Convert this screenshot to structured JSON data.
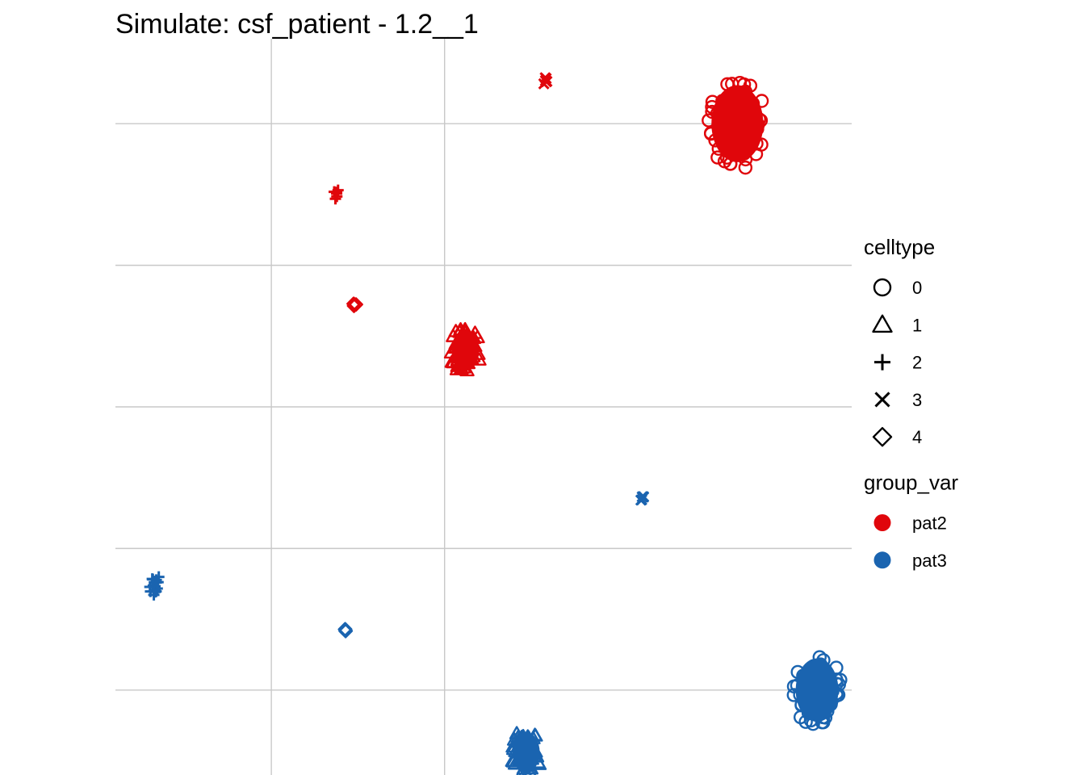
{
  "chart_data": {
    "type": "scatter",
    "title": "Simulate: csf_patient - 1.2__1",
    "xlabel": "",
    "ylabel": "",
    "xlim": [
      -1.9,
      2.35
    ],
    "ylim": [
      -0.8,
      1.8
    ],
    "grid": true,
    "axis_ticks_labels": false,
    "legends": [
      {
        "title": "celltype",
        "kind": "shape",
        "entries": [
          {
            "label": "0",
            "shape": "circle"
          },
          {
            "label": "1",
            "shape": "triangle"
          },
          {
            "label": "2",
            "shape": "plus"
          },
          {
            "label": "3",
            "shape": "cross"
          },
          {
            "label": "4",
            "shape": "diamond"
          }
        ]
      },
      {
        "title": "group_var",
        "kind": "color",
        "entries": [
          {
            "label": "pat2",
            "color": "#E0060B"
          },
          {
            "label": "pat3",
            "color": "#1A64B0"
          }
        ]
      }
    ],
    "series": [
      {
        "group": "pat2",
        "color": "#E0060B",
        "clusters": [
          {
            "celltype": "0",
            "x": 1.69,
            "y": 1.5,
            "spread": 0.17,
            "n": 60
          },
          {
            "celltype": "1",
            "x": 0.12,
            "y": 0.7,
            "spread": 0.09,
            "n": 50
          },
          {
            "celltype": "2",
            "x": -0.63,
            "y": 1.25,
            "spread": 0.02,
            "n": 6
          },
          {
            "celltype": "3",
            "x": 0.58,
            "y": 1.65,
            "spread": 0.015,
            "n": 6
          },
          {
            "celltype": "4",
            "x": -0.52,
            "y": 0.86,
            "spread": 0.01,
            "n": 4
          }
        ]
      },
      {
        "group": "pat3",
        "color": "#1A64B0",
        "clusters": [
          {
            "celltype": "0",
            "x": 2.15,
            "y": -0.5,
            "spread": 0.14,
            "n": 60
          },
          {
            "celltype": "1",
            "x": 0.47,
            "y": -0.72,
            "spread": 0.09,
            "n": 50
          },
          {
            "celltype": "2",
            "x": -1.68,
            "y": -0.13,
            "spread": 0.04,
            "n": 18
          },
          {
            "celltype": "3",
            "x": 1.14,
            "y": 0.18,
            "spread": 0.015,
            "n": 6
          },
          {
            "celltype": "4",
            "x": -0.57,
            "y": -0.29,
            "spread": 0.01,
            "n": 4
          }
        ]
      }
    ]
  }
}
